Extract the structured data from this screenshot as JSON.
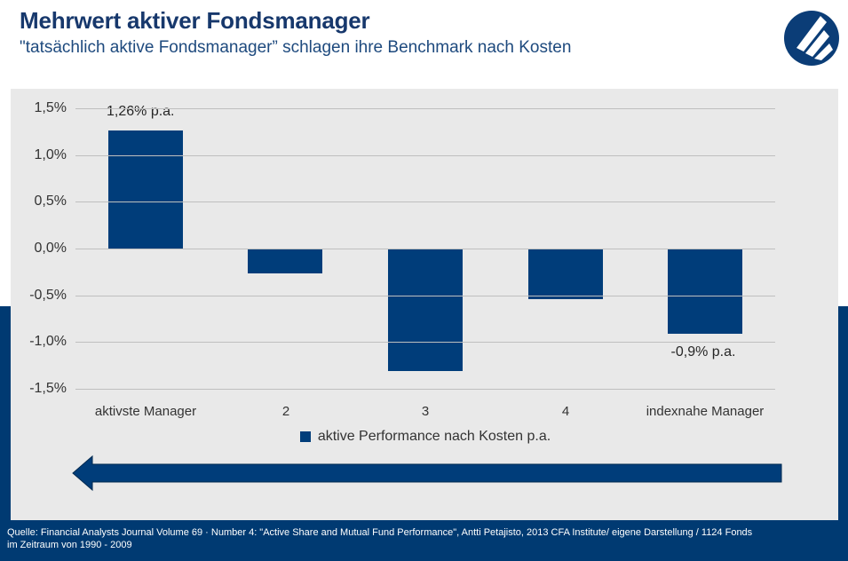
{
  "header": {
    "title": "Mehrwert aktiver Fondsmanager",
    "subtitle": "\"tatsächlich aktive Fondsmanager” schlagen ihre Benchmark nach Kosten"
  },
  "chart_data": {
    "type": "bar",
    "title": "",
    "xlabel": "",
    "ylabel": "",
    "categories": [
      "aktivste Manager",
      "2",
      "3",
      "4",
      "indexnahe Manager"
    ],
    "values": [
      1.26,
      -0.26,
      -1.3,
      -0.53,
      -0.9
    ],
    "series_name": "aktive Performance nach Kosten p.a.",
    "ylim": [
      -1.5,
      1.5
    ],
    "ytick_labels": [
      "1,5%",
      "1,0%",
      "0,5%",
      "0,0%",
      "-0,5%",
      "-1,0%",
      "-1,5%"
    ],
    "ytick_values": [
      1.5,
      1.0,
      0.5,
      0.0,
      -0.5,
      -1.0,
      -1.5
    ],
    "grid": true,
    "legend_position": "bottom",
    "bar_color": "#003d7a",
    "annotations": [
      {
        "bar": 0,
        "text": "1,26% p.a.",
        "position": "above"
      },
      {
        "bar": 4,
        "text": "-0,9% p.a.",
        "position": "below"
      }
    ],
    "arrow_direction": "left"
  },
  "legend": {
    "label": "aktive Performance nach Kosten p.a."
  },
  "footer": {
    "line1": "Quelle: Financial Analysts Journal Volume 69 · Number 4: \"Active Share and Mutual Fund Performance\", Antti Petajisto, 2013 CFA Institute/ eigene Darstellung / 1124 Fonds",
    "line2": "im Zeitraum von 1990 - 2009"
  },
  "colors": {
    "navy_band": "#003a72",
    "bar": "#003d7a",
    "panel_bg": "#e9e9e9",
    "gridline": "#bfbfbf",
    "title_text": "#17386c",
    "subtitle_text": "#1e4a7e",
    "axis_text": "#333333"
  }
}
